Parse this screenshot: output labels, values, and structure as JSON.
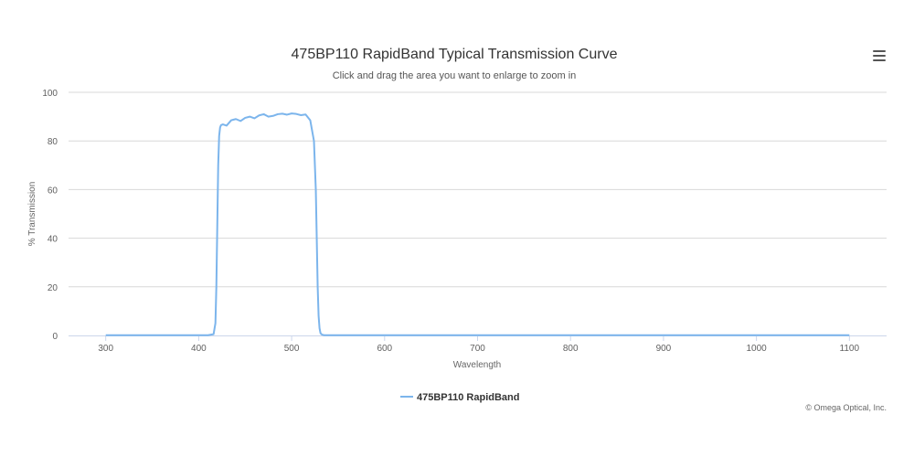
{
  "chart_data": {
    "type": "line",
    "title": "475BP110 RapidBand Typical Transmission Curve",
    "subtitle": "Click and drag the area you want to enlarge to zoom in",
    "xlabel": "Wavelength",
    "ylabel": "% Transmission",
    "xlim": [
      260,
      1140
    ],
    "ylim": [
      0,
      100
    ],
    "x_ticks": [
      300,
      400,
      500,
      600,
      700,
      800,
      900,
      1000,
      1100
    ],
    "y_ticks": [
      0,
      20,
      40,
      60,
      80,
      100
    ],
    "grid": "horizontal",
    "legend": "bottom-center",
    "series": [
      {
        "name": "475BP110 RapidBand",
        "color": "#7cb5ec",
        "x": [
          300,
          410,
          416,
          418,
          419,
          420,
          421,
          422,
          423,
          424,
          426,
          430,
          435,
          440,
          445,
          450,
          455,
          460,
          465,
          470,
          475,
          480,
          485,
          490,
          495,
          500,
          505,
          510,
          515,
          520,
          524,
          526,
          527,
          528,
          529,
          530,
          531,
          532,
          533,
          535,
          540,
          600,
          700,
          800,
          900,
          1000,
          1100
        ],
        "y": [
          0.1,
          0.1,
          0.5,
          5,
          20,
          45,
          70,
          82,
          85.5,
          86.5,
          86.8,
          86.3,
          88.5,
          89,
          88.2,
          89.5,
          90,
          89.3,
          90.5,
          91,
          90,
          90.3,
          91,
          91.2,
          90.8,
          91.3,
          91.1,
          90.6,
          90.9,
          88.5,
          80,
          60,
          40,
          20,
          8,
          3,
          1,
          0.5,
          0.3,
          0.1,
          0.1,
          0.1,
          0.1,
          0.1,
          0.1,
          0.1,
          0.1
        ]
      }
    ]
  },
  "credits": "© Omega Optical, Inc.",
  "menu_icon": "hamburger-menu-icon"
}
